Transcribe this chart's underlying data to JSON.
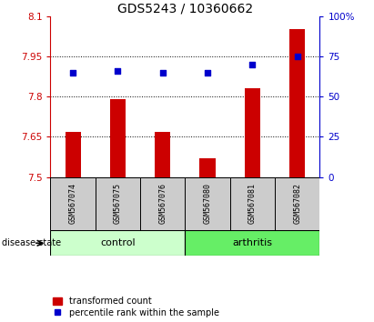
{
  "title": "GDS5243 / 10360662",
  "samples": [
    "GSM567074",
    "GSM567075",
    "GSM567076",
    "GSM567080",
    "GSM567081",
    "GSM567082"
  ],
  "bar_values": [
    7.67,
    7.79,
    7.67,
    7.57,
    7.83,
    8.05
  ],
  "percentile_values": [
    65,
    66,
    65,
    65,
    70,
    75
  ],
  "bar_bottom": 7.5,
  "ylim_left": [
    7.5,
    8.1
  ],
  "ylim_right": [
    0,
    100
  ],
  "yticks_left": [
    7.5,
    7.65,
    7.8,
    7.95,
    8.1
  ],
  "ytick_labels_left": [
    "7.5",
    "7.65",
    "7.8",
    "7.95",
    "8.1"
  ],
  "yticks_right": [
    0,
    25,
    50,
    75,
    100
  ],
  "ytick_labels_right": [
    "0",
    "25",
    "50",
    "75",
    "100%"
  ],
  "hlines": [
    7.65,
    7.8,
    7.95
  ],
  "bar_color": "#cc0000",
  "dot_color": "#0000cc",
  "group_labels": [
    "control",
    "arthritis"
  ],
  "group_ranges": [
    [
      0,
      3
    ],
    [
      3,
      6
    ]
  ],
  "group_colors": [
    "#ccffcc",
    "#66ee66"
  ],
  "sample_box_color": "#cccccc",
  "disease_state_label": "disease state",
  "legend_bar_label": "transformed count",
  "legend_dot_label": "percentile rank within the sample",
  "title_fontsize": 10,
  "tick_label_fontsize": 7.5,
  "sample_fontsize": 6,
  "group_fontsize": 8,
  "legend_fontsize": 7,
  "bar_width": 0.35
}
